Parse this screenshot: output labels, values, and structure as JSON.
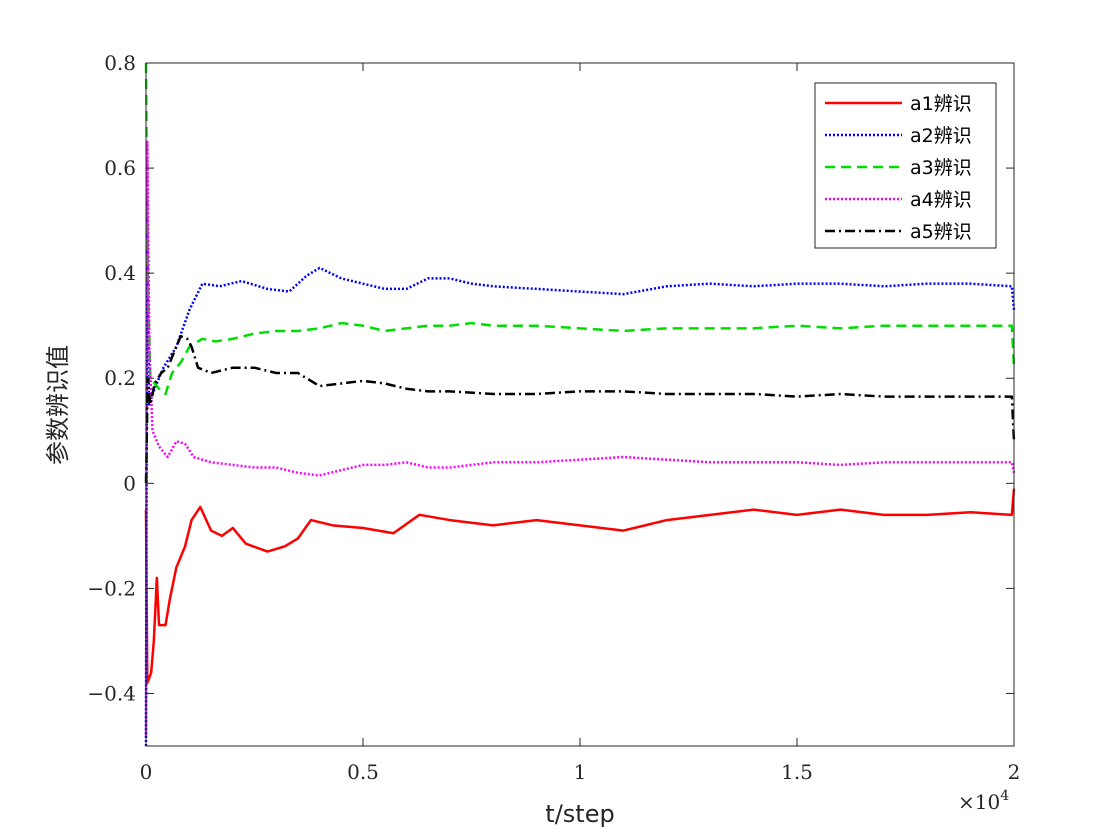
{
  "chart_data": {
    "type": "line",
    "title": "",
    "xlabel": "t/step",
    "ylabel": "参数辨识值",
    "x_exponent_label": "×10",
    "x_exponent_power": "4",
    "xlim": [
      0,
      20000
    ],
    "ylim": [
      -0.5,
      0.8
    ],
    "xticks": [
      0,
      5000,
      10000,
      15000,
      20000
    ],
    "xtick_labels": [
      "0",
      "0.5",
      "1",
      "1.5",
      "2"
    ],
    "yticks": [
      -0.4,
      -0.2,
      0,
      0.2,
      0.4,
      0.6,
      0.8
    ],
    "ytick_labels": [
      "−0.4",
      "−0.2",
      "0",
      "0.2",
      "0.4",
      "0.6",
      "0.8"
    ],
    "grid": false,
    "legend_position": "top-right",
    "series": [
      {
        "name": "a1辨识",
        "color": "#ff0000",
        "dash": "solid",
        "points": [
          [
            0,
            -0.05
          ],
          [
            30,
            -0.38
          ],
          [
            120,
            -0.36
          ],
          [
            180,
            -0.3
          ],
          [
            250,
            -0.18
          ],
          [
            300,
            -0.27
          ],
          [
            450,
            -0.27
          ],
          [
            550,
            -0.22
          ],
          [
            700,
            -0.16
          ],
          [
            900,
            -0.12
          ],
          [
            1050,
            -0.07
          ],
          [
            1250,
            -0.045
          ],
          [
            1500,
            -0.09
          ],
          [
            1750,
            -0.1
          ],
          [
            2000,
            -0.085
          ],
          [
            2300,
            -0.115
          ],
          [
            2800,
            -0.13
          ],
          [
            3200,
            -0.12
          ],
          [
            3500,
            -0.105
          ],
          [
            3800,
            -0.07
          ],
          [
            4300,
            -0.08
          ],
          [
            5000,
            -0.085
          ],
          [
            5700,
            -0.095
          ],
          [
            6300,
            -0.06
          ],
          [
            7000,
            -0.07
          ],
          [
            8000,
            -0.08
          ],
          [
            9000,
            -0.07
          ],
          [
            10000,
            -0.08
          ],
          [
            11000,
            -0.09
          ],
          [
            12000,
            -0.07
          ],
          [
            13000,
            -0.06
          ],
          [
            14000,
            -0.05
          ],
          [
            15000,
            -0.06
          ],
          [
            16000,
            -0.05
          ],
          [
            17000,
            -0.06
          ],
          [
            18000,
            -0.06
          ],
          [
            19000,
            -0.055
          ],
          [
            19950,
            -0.06
          ],
          [
            20000,
            -0.01
          ]
        ]
      },
      {
        "name": "a2辨识",
        "color": "#0000ff",
        "dash": "dotted",
        "points": [
          [
            0,
            -0.5
          ],
          [
            25,
            0.55
          ],
          [
            70,
            0.15
          ],
          [
            200,
            0.18
          ],
          [
            400,
            0.22
          ],
          [
            700,
            0.26
          ],
          [
            1000,
            0.33
          ],
          [
            1300,
            0.38
          ],
          [
            1700,
            0.375
          ],
          [
            2200,
            0.385
          ],
          [
            2800,
            0.37
          ],
          [
            3300,
            0.365
          ],
          [
            3700,
            0.395
          ],
          [
            4000,
            0.41
          ],
          [
            4500,
            0.39
          ],
          [
            5000,
            0.38
          ],
          [
            5500,
            0.37
          ],
          [
            6000,
            0.37
          ],
          [
            6500,
            0.39
          ],
          [
            7000,
            0.39
          ],
          [
            7500,
            0.38
          ],
          [
            8000,
            0.375
          ],
          [
            9000,
            0.37
          ],
          [
            10000,
            0.365
          ],
          [
            11000,
            0.36
          ],
          [
            12000,
            0.375
          ],
          [
            13000,
            0.38
          ],
          [
            14000,
            0.375
          ],
          [
            15000,
            0.38
          ],
          [
            16000,
            0.38
          ],
          [
            17000,
            0.375
          ],
          [
            18000,
            0.38
          ],
          [
            19000,
            0.38
          ],
          [
            19950,
            0.375
          ],
          [
            20000,
            0.33
          ]
        ]
      },
      {
        "name": "a3辨识",
        "color": "#00dd00",
        "dash": "dashed",
        "points": [
          [
            0,
            0.8
          ],
          [
            40,
            0.4
          ],
          [
            100,
            0.2
          ],
          [
            300,
            0.18
          ],
          [
            450,
            0.17
          ],
          [
            600,
            0.21
          ],
          [
            800,
            0.23
          ],
          [
            1000,
            0.26
          ],
          [
            1300,
            0.275
          ],
          [
            1600,
            0.27
          ],
          [
            2000,
            0.275
          ],
          [
            2500,
            0.285
          ],
          [
            3000,
            0.29
          ],
          [
            3500,
            0.29
          ],
          [
            4000,
            0.295
          ],
          [
            4500,
            0.305
          ],
          [
            5000,
            0.3
          ],
          [
            5500,
            0.29
          ],
          [
            6000,
            0.295
          ],
          [
            6500,
            0.3
          ],
          [
            7000,
            0.3
          ],
          [
            7500,
            0.305
          ],
          [
            8000,
            0.3
          ],
          [
            9000,
            0.3
          ],
          [
            10000,
            0.295
          ],
          [
            11000,
            0.29
          ],
          [
            12000,
            0.295
          ],
          [
            13000,
            0.295
          ],
          [
            14000,
            0.295
          ],
          [
            15000,
            0.3
          ],
          [
            16000,
            0.295
          ],
          [
            17000,
            0.3
          ],
          [
            18000,
            0.3
          ],
          [
            19000,
            0.3
          ],
          [
            19950,
            0.3
          ],
          [
            20000,
            0.22
          ]
        ]
      },
      {
        "name": "a4辨识",
        "color": "#ff00ff",
        "dash": "dotted",
        "points": [
          [
            0,
            -0.48
          ],
          [
            30,
            0.65
          ],
          [
            80,
            0.25
          ],
          [
            150,
            0.1
          ],
          [
            300,
            0.07
          ],
          [
            500,
            0.05
          ],
          [
            700,
            0.08
          ],
          [
            900,
            0.075
          ],
          [
            1100,
            0.05
          ],
          [
            1500,
            0.04
          ],
          [
            2000,
            0.035
          ],
          [
            2500,
            0.03
          ],
          [
            3000,
            0.03
          ],
          [
            3500,
            0.02
          ],
          [
            4000,
            0.015
          ],
          [
            4500,
            0.025
          ],
          [
            5000,
            0.035
          ],
          [
            5500,
            0.035
          ],
          [
            6000,
            0.04
          ],
          [
            6500,
            0.03
          ],
          [
            7000,
            0.03
          ],
          [
            8000,
            0.04
          ],
          [
            9000,
            0.04
          ],
          [
            10000,
            0.045
          ],
          [
            11000,
            0.05
          ],
          [
            12000,
            0.045
          ],
          [
            13000,
            0.04
          ],
          [
            14000,
            0.04
          ],
          [
            15000,
            0.04
          ],
          [
            16000,
            0.035
          ],
          [
            17000,
            0.04
          ],
          [
            18000,
            0.04
          ],
          [
            19000,
            0.04
          ],
          [
            19950,
            0.04
          ],
          [
            20000,
            0.02
          ]
        ]
      },
      {
        "name": "a5辨识",
        "color": "#000000",
        "dash": "dashdot",
        "points": [
          [
            0,
            0.0
          ],
          [
            40,
            0.2
          ],
          [
            100,
            0.15
          ],
          [
            200,
            0.19
          ],
          [
            350,
            0.21
          ],
          [
            500,
            0.22
          ],
          [
            650,
            0.25
          ],
          [
            800,
            0.28
          ],
          [
            950,
            0.275
          ],
          [
            1050,
            0.26
          ],
          [
            1200,
            0.22
          ],
          [
            1500,
            0.21
          ],
          [
            2000,
            0.22
          ],
          [
            2500,
            0.22
          ],
          [
            3000,
            0.21
          ],
          [
            3500,
            0.21
          ],
          [
            4000,
            0.185
          ],
          [
            4500,
            0.19
          ],
          [
            5000,
            0.195
          ],
          [
            5500,
            0.19
          ],
          [
            6000,
            0.18
          ],
          [
            6500,
            0.175
          ],
          [
            7000,
            0.175
          ],
          [
            8000,
            0.17
          ],
          [
            9000,
            0.17
          ],
          [
            10000,
            0.175
          ],
          [
            11000,
            0.175
          ],
          [
            12000,
            0.17
          ],
          [
            13000,
            0.17
          ],
          [
            14000,
            0.17
          ],
          [
            15000,
            0.165
          ],
          [
            16000,
            0.17
          ],
          [
            17000,
            0.165
          ],
          [
            18000,
            0.165
          ],
          [
            19000,
            0.165
          ],
          [
            19950,
            0.165
          ],
          [
            20000,
            0.08
          ]
        ]
      }
    ]
  }
}
